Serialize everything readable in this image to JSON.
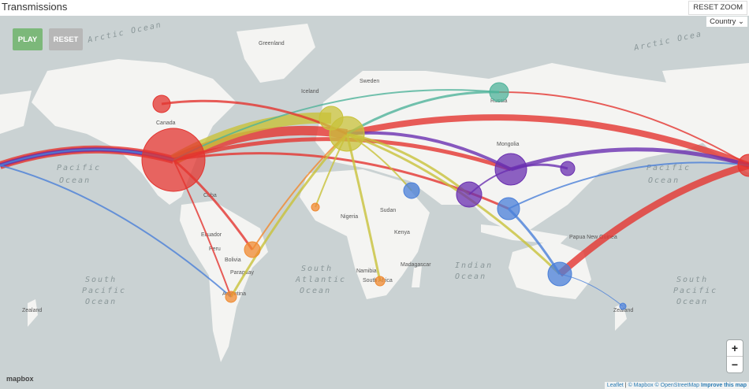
{
  "header": {
    "title": "Transmissions",
    "reset_zoom": "RESET ZOOM"
  },
  "controls": {
    "play": "PLAY",
    "reset": "RESET",
    "country_select": "Country"
  },
  "zoom": {
    "in": "+",
    "out": "−"
  },
  "attribution": {
    "leaflet": "Leaflet",
    "sep": " | ",
    "mapbox": "© Mapbox",
    "osm": "© OpenStreetMap",
    "improve": "Improve this map"
  },
  "logo": "mapbox",
  "labels": {
    "arctic1": "Arctic Ocean",
    "arctic2": "Arctic Ocea",
    "greenland": "Greenland",
    "iceland": "Iceland",
    "sweden": "Sweden",
    "russia": "Russia",
    "canada": "Canada",
    "cuba": "Cuba",
    "mongolia": "Mongolia",
    "sudan": "Sudan",
    "nigeria": "Nigeria",
    "kenya": "Kenya",
    "ecuador": "Ecuador",
    "peru": "Peru",
    "bolivia": "Bolivia",
    "paraguay": "Paraguay",
    "argentina": "Argentina",
    "namibia": "Namibia",
    "south_africa": "South Africa",
    "madagascar": "Madagascar",
    "png": "Papua New Guinea",
    "zealand1": "Zealand",
    "zealand2": "Zealand",
    "np1a": "Pacific",
    "np1b": "Ocean",
    "np2a": "Pacific",
    "np2b": "Ocean",
    "sp1a": "South",
    "sp1b": "Pacific",
    "sp1c": "Ocean",
    "sp2a": "South",
    "sp2b": "Pacific",
    "sp2c": "Ocean",
    "sa1": "South",
    "sa2": "Atlantic",
    "sa3": "Ocean",
    "io1": "Indian",
    "io2": "Ocean"
  },
  "colors": {
    "north_america": "#e3342f",
    "europe": "#c8c23a",
    "asia": "#6a2fb0",
    "oceania": "#4a7fd8",
    "south_america": "#f08a30",
    "russia": "#4fb39a",
    "play": "#7cb87a",
    "reset": "#b7b7b7",
    "ocean": "#cad2d3",
    "land": "#f4f4f2"
  }
}
